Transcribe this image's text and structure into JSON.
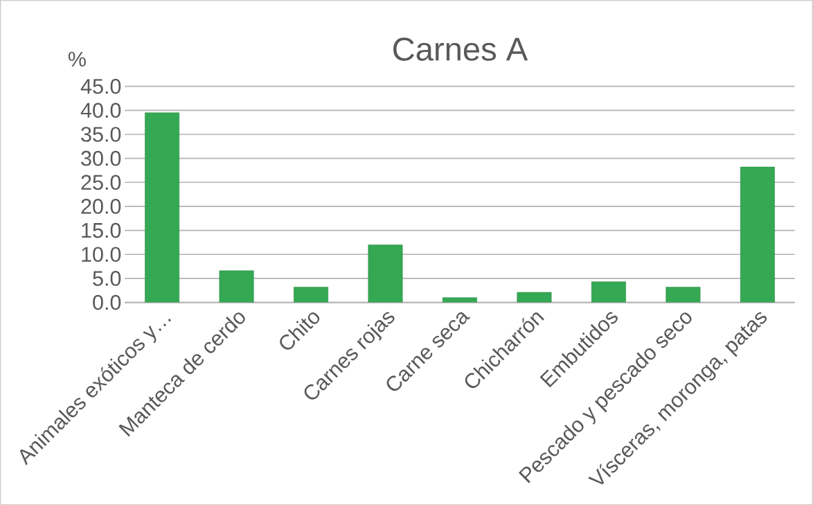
{
  "chart_data": {
    "type": "bar",
    "title": "Carnes A",
    "ylabel": "%",
    "categories": [
      "Animales exóticos y…",
      "Manteca de cerdo",
      "Chito",
      "Carnes rojas",
      "Carne seca",
      "Chicharrón",
      "Embutidos",
      "Pescado y pescado seco",
      "Vísceras, moronga, patas"
    ],
    "values": [
      39.5,
      6.6,
      3.2,
      12.0,
      1.0,
      2.1,
      4.3,
      3.2,
      28.2
    ],
    "color": "#34a853",
    "ylim": [
      0,
      45
    ],
    "yticks": [
      {
        "value": 0,
        "label": "0.0"
      },
      {
        "value": 5,
        "label": "5.0"
      },
      {
        "value": 10,
        "label": "10.0"
      },
      {
        "value": 15,
        "label": "15.0"
      },
      {
        "value": 20,
        "label": "20.0"
      },
      {
        "value": 25,
        "label": "25.0"
      },
      {
        "value": 30,
        "label": "30.0"
      },
      {
        "value": 35,
        "label": "35.0"
      },
      {
        "value": 40,
        "label": "40.0"
      },
      {
        "value": 45,
        "label": "45.0"
      }
    ],
    "grid": "y"
  }
}
